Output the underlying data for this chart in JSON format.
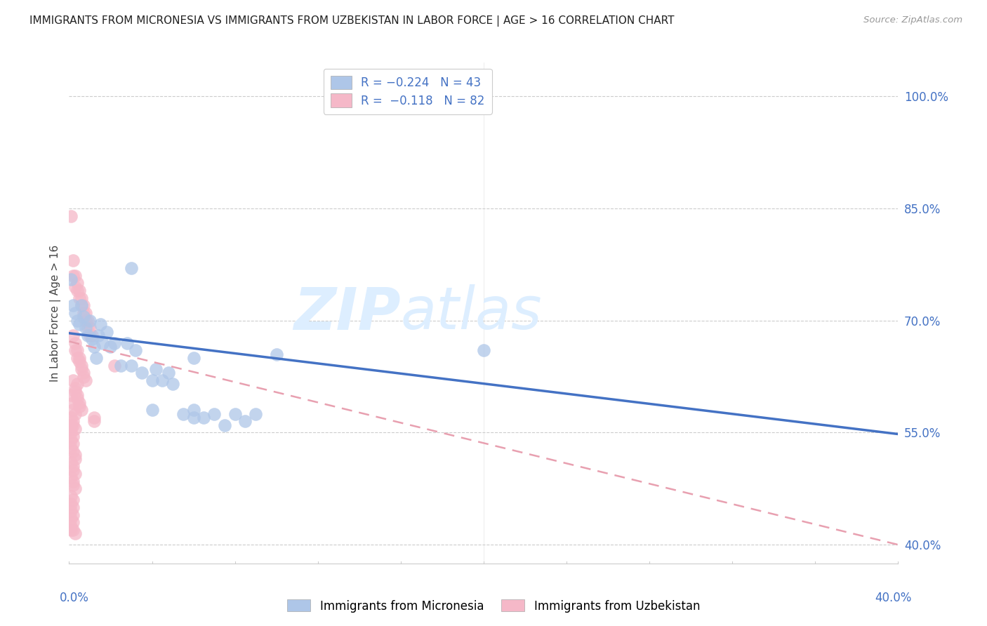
{
  "title": "IMMIGRANTS FROM MICRONESIA VS IMMIGRANTS FROM UZBEKISTAN IN LABOR FORCE | AGE > 16 CORRELATION CHART",
  "source": "Source: ZipAtlas.com",
  "ylabel": "In Labor Force | Age > 16",
  "yticks": [
    0.4,
    0.55,
    0.7,
    0.85,
    1.0
  ],
  "ytick_labels": [
    "40.0%",
    "55.0%",
    "70.0%",
    "85.0%",
    "100.0%"
  ],
  "xmin": 0.0,
  "xmax": 0.4,
  "ymin": 0.375,
  "ymax": 1.045,
  "micronesia_color": "#aec6e8",
  "uzbekistan_color": "#f5b8c8",
  "micronesia_scatter": [
    [
      0.001,
      0.755
    ],
    [
      0.002,
      0.72
    ],
    [
      0.003,
      0.71
    ],
    [
      0.004,
      0.7
    ],
    [
      0.005,
      0.695
    ],
    [
      0.006,
      0.72
    ],
    [
      0.007,
      0.705
    ],
    [
      0.008,
      0.69
    ],
    [
      0.009,
      0.68
    ],
    [
      0.01,
      0.7
    ],
    [
      0.011,
      0.675
    ],
    [
      0.012,
      0.665
    ],
    [
      0.013,
      0.65
    ],
    [
      0.014,
      0.68
    ],
    [
      0.015,
      0.695
    ],
    [
      0.016,
      0.67
    ],
    [
      0.018,
      0.685
    ],
    [
      0.02,
      0.665
    ],
    [
      0.022,
      0.67
    ],
    [
      0.025,
      0.64
    ],
    [
      0.028,
      0.67
    ],
    [
      0.03,
      0.64
    ],
    [
      0.032,
      0.66
    ],
    [
      0.035,
      0.63
    ],
    [
      0.04,
      0.62
    ],
    [
      0.042,
      0.635
    ],
    [
      0.045,
      0.62
    ],
    [
      0.048,
      0.63
    ],
    [
      0.05,
      0.615
    ],
    [
      0.06,
      0.58
    ],
    [
      0.065,
      0.57
    ],
    [
      0.07,
      0.575
    ],
    [
      0.075,
      0.56
    ],
    [
      0.08,
      0.575
    ],
    [
      0.085,
      0.565
    ],
    [
      0.03,
      0.77
    ],
    [
      0.06,
      0.65
    ],
    [
      0.1,
      0.655
    ],
    [
      0.2,
      0.66
    ],
    [
      0.055,
      0.575
    ],
    [
      0.06,
      0.57
    ],
    [
      0.09,
      0.575
    ],
    [
      0.04,
      0.58
    ]
  ],
  "uzbekistan_scatter": [
    [
      0.001,
      0.84
    ],
    [
      0.002,
      0.78
    ],
    [
      0.002,
      0.76
    ],
    [
      0.003,
      0.76
    ],
    [
      0.003,
      0.745
    ],
    [
      0.004,
      0.75
    ],
    [
      0.004,
      0.74
    ],
    [
      0.005,
      0.74
    ],
    [
      0.005,
      0.73
    ],
    [
      0.006,
      0.73
    ],
    [
      0.006,
      0.72
    ],
    [
      0.007,
      0.72
    ],
    [
      0.007,
      0.71
    ],
    [
      0.008,
      0.71
    ],
    [
      0.008,
      0.7
    ],
    [
      0.009,
      0.7
    ],
    [
      0.009,
      0.69
    ],
    [
      0.01,
      0.69
    ],
    [
      0.01,
      0.68
    ],
    [
      0.011,
      0.68
    ],
    [
      0.002,
      0.68
    ],
    [
      0.003,
      0.67
    ],
    [
      0.003,
      0.66
    ],
    [
      0.004,
      0.66
    ],
    [
      0.004,
      0.65
    ],
    [
      0.005,
      0.65
    ],
    [
      0.005,
      0.645
    ],
    [
      0.006,
      0.64
    ],
    [
      0.006,
      0.635
    ],
    [
      0.007,
      0.63
    ],
    [
      0.007,
      0.625
    ],
    [
      0.008,
      0.62
    ],
    [
      0.002,
      0.62
    ],
    [
      0.003,
      0.61
    ],
    [
      0.003,
      0.605
    ],
    [
      0.004,
      0.6
    ],
    [
      0.004,
      0.595
    ],
    [
      0.005,
      0.59
    ],
    [
      0.005,
      0.585
    ],
    [
      0.006,
      0.58
    ],
    [
      0.001,
      0.6
    ],
    [
      0.002,
      0.59
    ],
    [
      0.002,
      0.58
    ],
    [
      0.003,
      0.575
    ],
    [
      0.001,
      0.57
    ],
    [
      0.002,
      0.565
    ],
    [
      0.002,
      0.56
    ],
    [
      0.003,
      0.555
    ],
    [
      0.001,
      0.55
    ],
    [
      0.002,
      0.545
    ],
    [
      0.001,
      0.54
    ],
    [
      0.002,
      0.535
    ],
    [
      0.001,
      0.53
    ],
    [
      0.002,
      0.525
    ],
    [
      0.003,
      0.52
    ],
    [
      0.003,
      0.515
    ],
    [
      0.001,
      0.51
    ],
    [
      0.002,
      0.505
    ],
    [
      0.002,
      0.5
    ],
    [
      0.003,
      0.495
    ],
    [
      0.001,
      0.49
    ],
    [
      0.002,
      0.485
    ],
    [
      0.002,
      0.48
    ],
    [
      0.003,
      0.475
    ],
    [
      0.001,
      0.465
    ],
    [
      0.002,
      0.46
    ],
    [
      0.001,
      0.455
    ],
    [
      0.002,
      0.45
    ],
    [
      0.001,
      0.445
    ],
    [
      0.002,
      0.44
    ],
    [
      0.001,
      0.435
    ],
    [
      0.002,
      0.43
    ],
    [
      0.001,
      0.425
    ],
    [
      0.002,
      0.42
    ],
    [
      0.001,
      0.42
    ],
    [
      0.003,
      0.415
    ],
    [
      0.001,
      0.555
    ],
    [
      0.022,
      0.64
    ],
    [
      0.001,
      0.56
    ],
    [
      0.004,
      0.615
    ],
    [
      0.012,
      0.57
    ],
    [
      0.012,
      0.565
    ]
  ],
  "micronesia_line_x": [
    0.0,
    0.4
  ],
  "micronesia_line_y": [
    0.683,
    0.548
  ],
  "uzbekistan_line_x": [
    0.0,
    0.4
  ],
  "uzbekistan_line_y": [
    0.672,
    0.4
  ],
  "title_color": "#222222",
  "axis_label_color": "#4472c4",
  "grid_color": "#cccccc",
  "watermark_zip": "ZIP",
  "watermark_atlas": "atlas",
  "watermark_color": "#ddeeff"
}
